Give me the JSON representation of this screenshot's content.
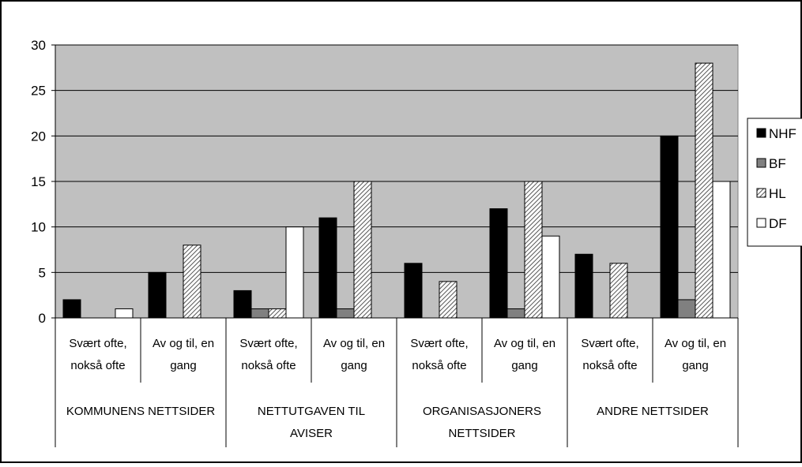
{
  "chart_data": {
    "type": "bar",
    "title": "",
    "xlabel": "",
    "ylabel": "",
    "ylim": [
      0,
      30
    ],
    "yticks": [
      0,
      5,
      10,
      15,
      20,
      25,
      30
    ],
    "grid": true,
    "legend_position": "right",
    "plot_background": "#c0c0c0",
    "groups": [
      {
        "label_lines": [
          "KOMMUNENS NETTSIDER"
        ],
        "subcategories": [
          0,
          1
        ]
      },
      {
        "label_lines": [
          "NETTUTGAVEN TIL",
          "AVISER"
        ],
        "subcategories": [
          2,
          3
        ]
      },
      {
        "label_lines": [
          "ORGANISASJONERS",
          "NETTSIDER"
        ],
        "subcategories": [
          4,
          5
        ]
      },
      {
        "label_lines": [
          "ANDRE NETTSIDER"
        ],
        "subcategories": [
          6,
          7
        ]
      }
    ],
    "categories": [
      [
        "Svært ofte,",
        "nokså ofte"
      ],
      [
        "Av og til, en",
        "gang"
      ],
      [
        "Svært ofte,",
        "nokså ofte"
      ],
      [
        "Av og til, en",
        "gang"
      ],
      [
        "Svært ofte,",
        "nokså ofte"
      ],
      [
        "Av og til, en",
        "gang"
      ],
      [
        "Svært ofte,",
        "nokså ofte"
      ],
      [
        "Av og til, en",
        "gang"
      ]
    ],
    "series": [
      {
        "name": "NHF",
        "fill": "#000000",
        "pattern": "solid",
        "values": [
          2,
          5,
          3,
          11,
          6,
          12,
          7,
          20
        ]
      },
      {
        "name": "BF",
        "fill": "#808080",
        "pattern": "solid",
        "values": [
          0,
          0,
          1,
          1,
          0,
          1,
          0,
          2
        ]
      },
      {
        "name": "HL",
        "fill": "#ffffff",
        "pattern": "diagonal-hatch",
        "values": [
          0,
          8,
          1,
          15,
          4,
          15,
          6,
          28
        ]
      },
      {
        "name": "DF",
        "fill": "#ffffff",
        "pattern": "solid",
        "values": [
          1,
          0,
          10,
          0,
          0,
          9,
          0,
          15
        ]
      }
    ]
  }
}
